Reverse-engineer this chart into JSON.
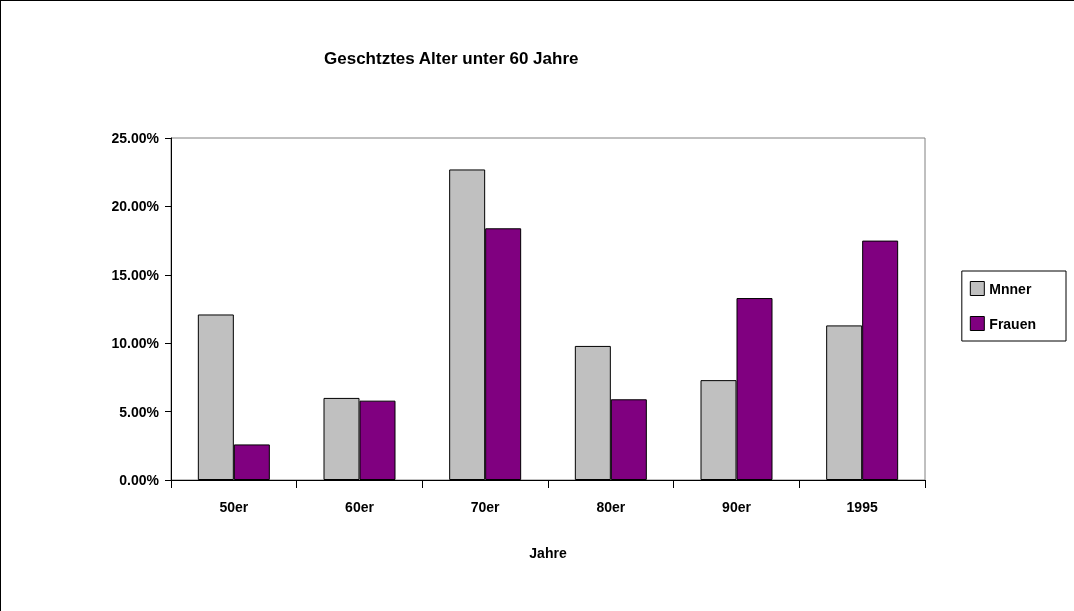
{
  "chart_data": {
    "type": "bar",
    "title": "Geschtztes Alter unter 60 Jahre",
    "xlabel": "Jahre",
    "categories": [
      "50er",
      "60er",
      "70er",
      "80er",
      "90er",
      "1995"
    ],
    "series": [
      {
        "name": "Mnner",
        "color": "#c0c0c0",
        "values": [
          12.1,
          6.0,
          22.7,
          9.8,
          7.3,
          11.3
        ]
      },
      {
        "name": "Frauen",
        "color": "#800080",
        "values": [
          2.6,
          5.8,
          18.4,
          5.9,
          13.3,
          17.5
        ]
      }
    ],
    "ylim": [
      0,
      25
    ],
    "yticks": [
      {
        "value": 0,
        "label": "0.00%"
      },
      {
        "value": 5,
        "label": "5.00%"
      },
      {
        "value": 10,
        "label": "10.00%"
      },
      {
        "value": 15,
        "label": "15.00%"
      },
      {
        "value": 20,
        "label": "20.00%"
      },
      {
        "value": 25,
        "label": "25.00%"
      }
    ],
    "grid": false,
    "legend": "right"
  }
}
